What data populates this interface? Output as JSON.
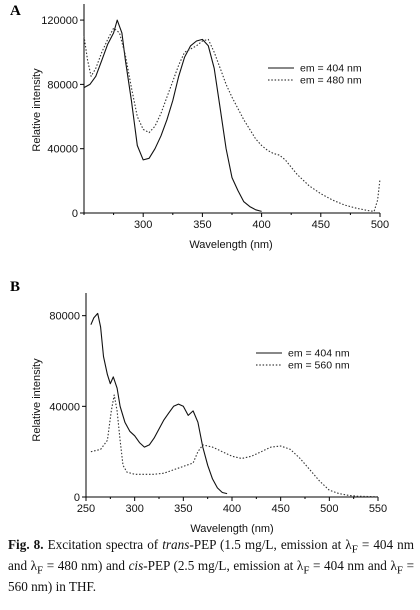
{
  "figure": {
    "caption_label": "Fig. 8.",
    "caption_parts": {
      "p1": " Excitation spectra of ",
      "trans": "trans",
      "p2": "-PEP (1.5 mg/L, emission at λ",
      "sub1": "F",
      "p3": " = 404 nm and λ",
      "sub2": "F",
      "p4": " = 480 nm) and ",
      "cis": "cis",
      "p5": "-PEP (2.5 mg/L, emission at λ",
      "sub3": "F",
      "p6": " = 404 nm and λ",
      "sub4": "F",
      "p7": " = 560 nm) in THF."
    }
  },
  "chart_data": [
    {
      "panel": "A",
      "type": "line",
      "xlabel": "Wavelength (nm)",
      "ylabel": "Relative intensity",
      "xlim": [
        250,
        500
      ],
      "ylim": [
        0,
        130000
      ],
      "xticks": [
        300,
        350,
        400,
        450,
        500
      ],
      "yticks": [
        0,
        40000,
        80000,
        120000
      ],
      "legend_position": "right",
      "series": [
        {
          "name": "em = 404 nm",
          "style": "solid",
          "x": [
            250,
            255,
            260,
            265,
            270,
            275,
            278,
            282,
            285,
            290,
            295,
            300,
            305,
            310,
            315,
            320,
            325,
            330,
            335,
            340,
            345,
            350,
            355,
            360,
            365,
            370,
            375,
            380,
            385,
            390,
            395,
            400
          ],
          "y": [
            78000,
            80000,
            85000,
            95000,
            105000,
            112000,
            120000,
            112000,
            95000,
            70000,
            42000,
            33000,
            34000,
            40000,
            48000,
            58000,
            70000,
            85000,
            97000,
            104000,
            107000,
            108000,
            104000,
            90000,
            65000,
            40000,
            22000,
            14000,
            7000,
            4000,
            2000,
            1000
          ]
        },
        {
          "name": "em = 480 nm",
          "style": "dotted",
          "x": [
            250,
            253,
            256,
            260,
            265,
            270,
            275,
            280,
            285,
            290,
            295,
            300,
            305,
            310,
            315,
            320,
            325,
            330,
            335,
            340,
            345,
            350,
            355,
            360,
            365,
            370,
            375,
            380,
            385,
            390,
            395,
            400,
            405,
            410,
            415,
            420,
            430,
            440,
            450,
            460,
            470,
            480,
            490,
            495,
            498,
            500
          ],
          "y": [
            110000,
            95000,
            85000,
            90000,
            100000,
            108000,
            115000,
            112000,
            98000,
            78000,
            60000,
            52000,
            50000,
            54000,
            62000,
            72000,
            82000,
            92000,
            100000,
            102000,
            104000,
            107000,
            108000,
            100000,
            90000,
            80000,
            72000,
            65000,
            58000,
            52000,
            46000,
            42000,
            39000,
            37000,
            36000,
            33000,
            24000,
            17000,
            12000,
            8000,
            5000,
            3000,
            1500,
            1000,
            8000,
            21000
          ]
        }
      ]
    },
    {
      "panel": "B",
      "type": "line",
      "xlabel": "Wavelength (nm)",
      "ylabel": "Relative intensity",
      "xlim": [
        250,
        550
      ],
      "ylim": [
        0,
        90000
      ],
      "xticks": [
        250,
        300,
        350,
        400,
        450,
        500,
        550
      ],
      "yticks": [
        0,
        40000,
        80000
      ],
      "legend_position": "right",
      "series": [
        {
          "name": "em = 404 nm",
          "style": "solid",
          "x": [
            255,
            258,
            262,
            265,
            268,
            272,
            275,
            278,
            282,
            285,
            290,
            295,
            300,
            305,
            310,
            315,
            320,
            325,
            330,
            335,
            340,
            345,
            350,
            355,
            360,
            365,
            370,
            375,
            380,
            385,
            390,
            395
          ],
          "y": [
            76000,
            79000,
            81000,
            75000,
            62000,
            54000,
            50000,
            53000,
            48000,
            40000,
            33000,
            29000,
            27000,
            24000,
            22000,
            23000,
            26000,
            30000,
            34000,
            37000,
            40000,
            41000,
            40000,
            36000,
            38000,
            33000,
            22000,
            14000,
            8000,
            4000,
            2000,
            1500
          ]
        },
        {
          "name": "em = 560 nm",
          "style": "dotted",
          "x": [
            255,
            265,
            272,
            276,
            279,
            282,
            285,
            288,
            292,
            300,
            310,
            320,
            330,
            340,
            350,
            360,
            365,
            370,
            380,
            390,
            400,
            410,
            420,
            430,
            440,
            450,
            460,
            470,
            480,
            490,
            500,
            510,
            520,
            530,
            540,
            550
          ],
          "y": [
            20000,
            21000,
            25000,
            38000,
            45000,
            38000,
            25000,
            14000,
            11000,
            10000,
            10000,
            10000,
            10500,
            12000,
            13500,
            15000,
            20000,
            23000,
            22000,
            20000,
            18000,
            17000,
            18000,
            20000,
            22000,
            22500,
            21000,
            17000,
            12000,
            7000,
            3000,
            1500,
            700,
            300,
            200,
            100
          ]
        }
      ]
    }
  ]
}
